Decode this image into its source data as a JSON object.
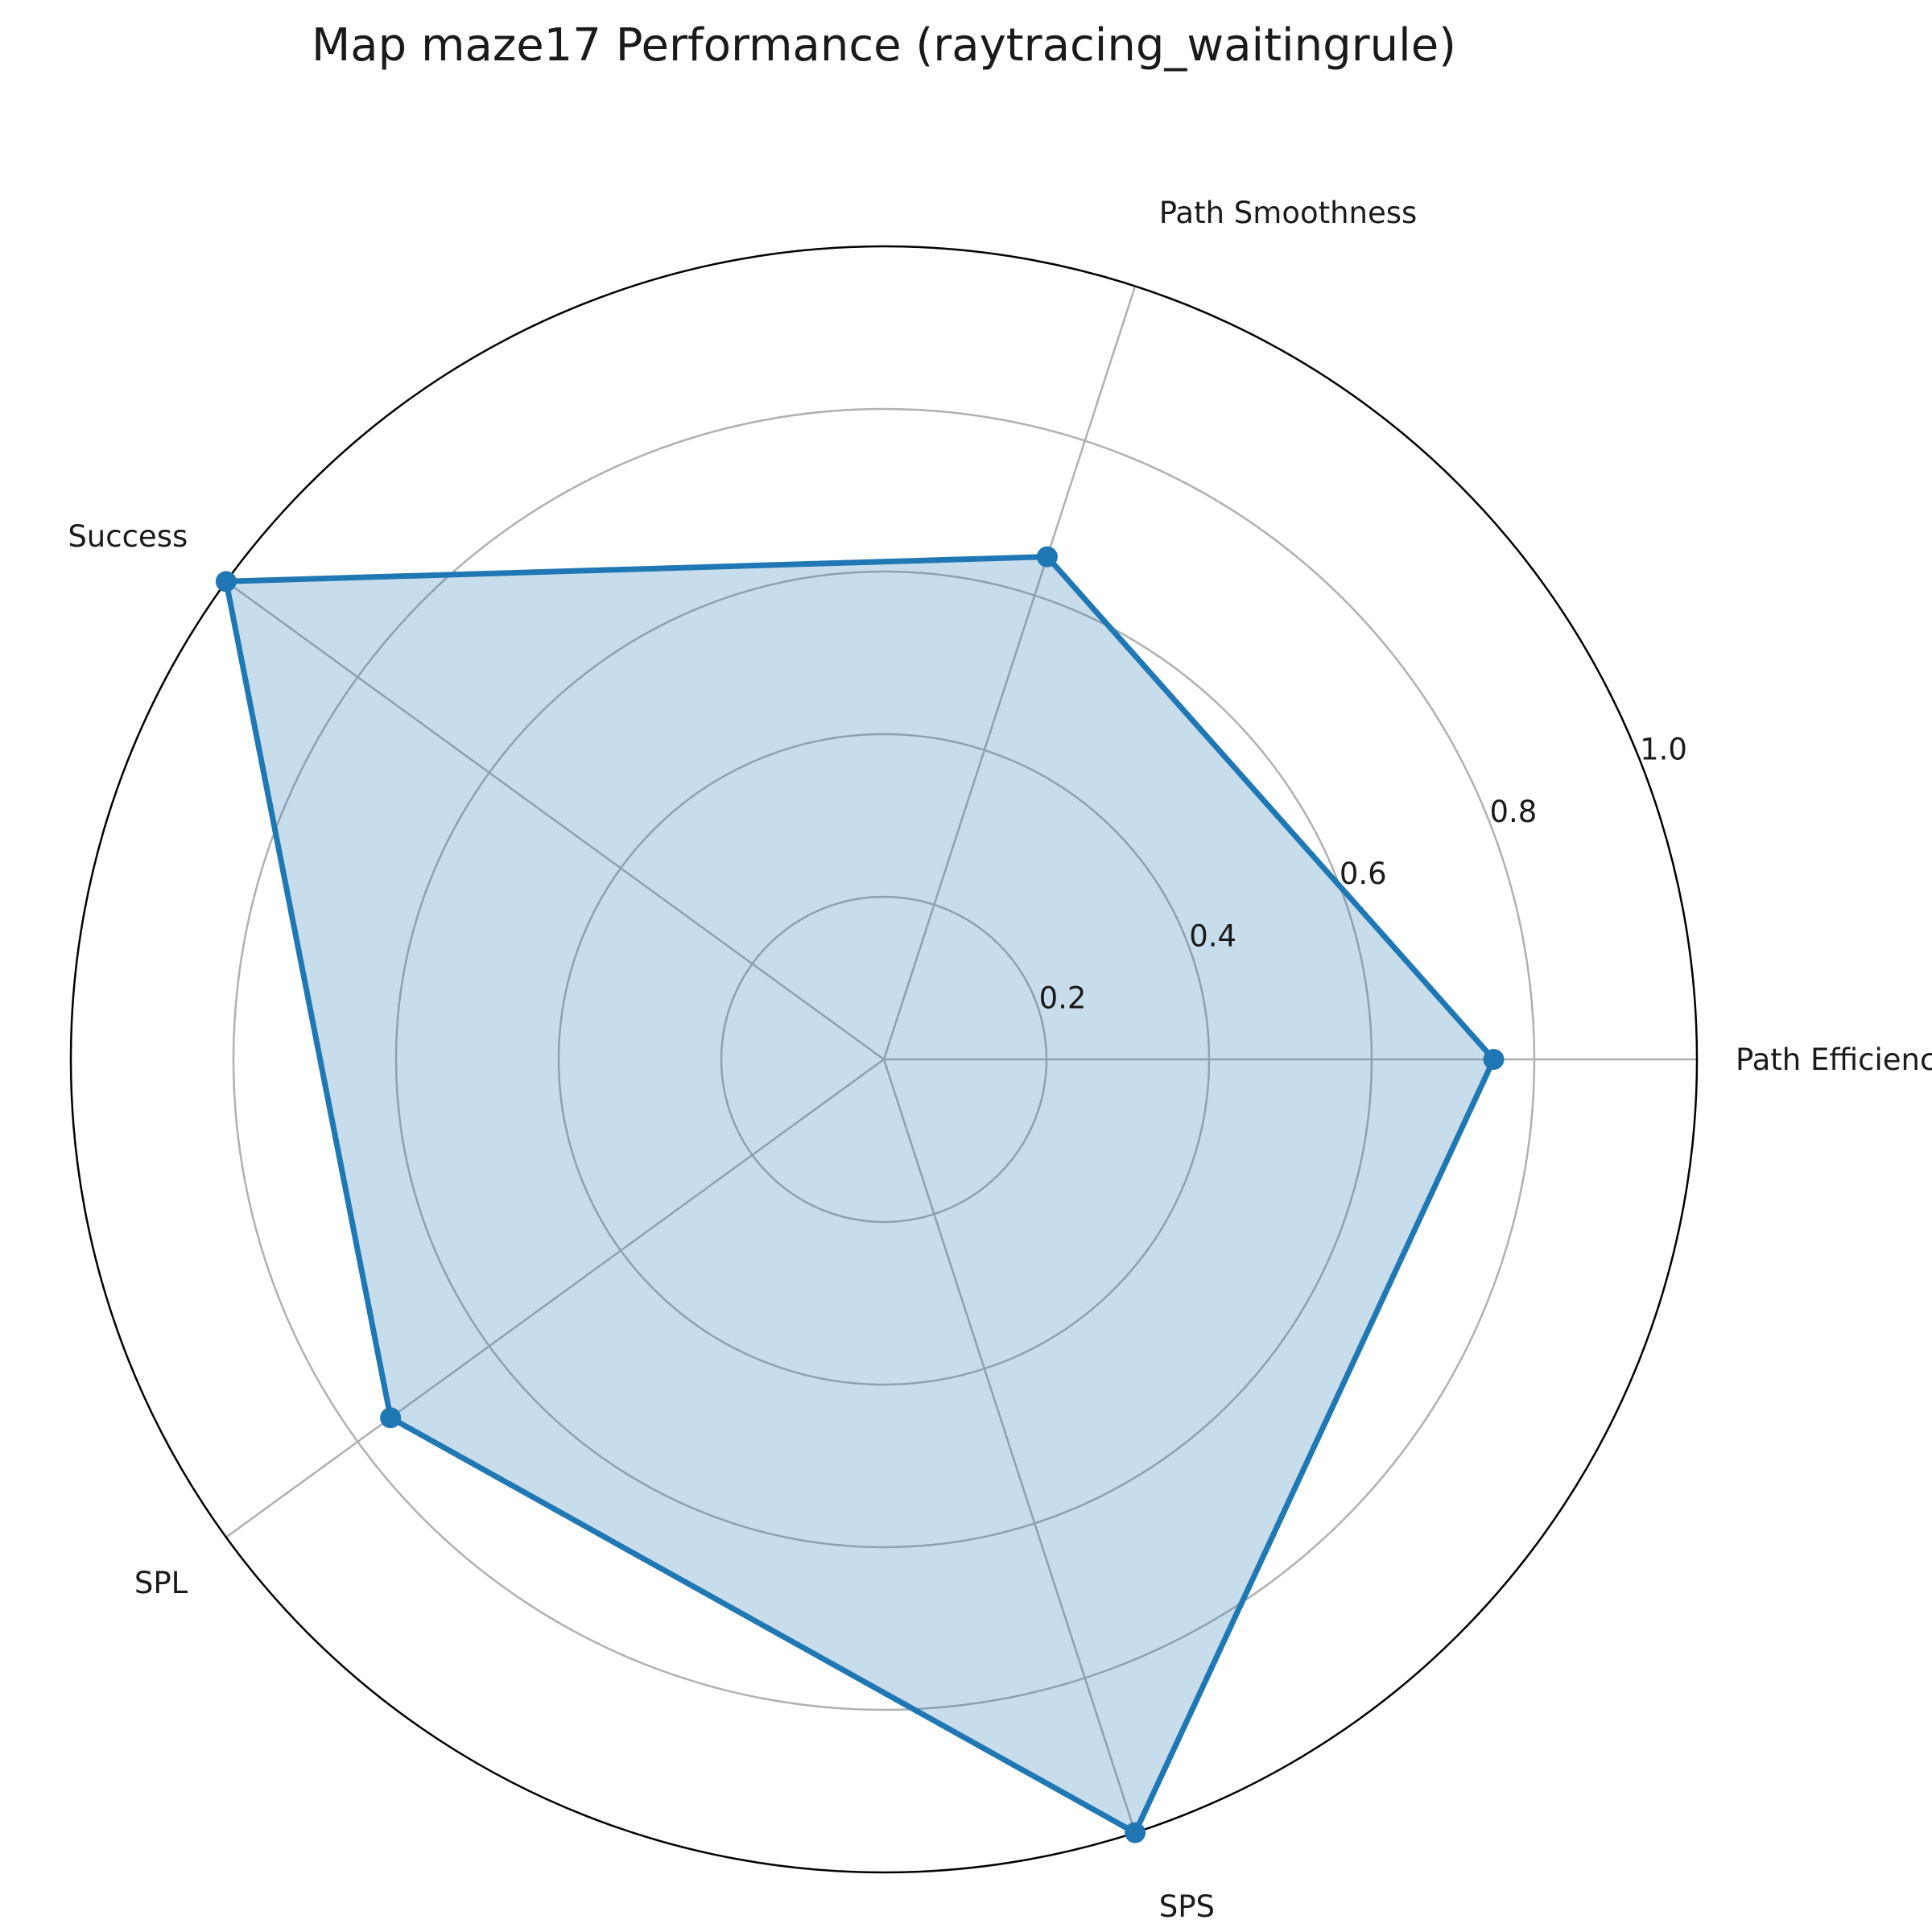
{
  "chart_data": {
    "type": "radar",
    "title": "Map maze17 Performance (raytracing_waitingrule)",
    "axes": [
      "Path Efficiency",
      "Path Smoothness",
      "Success",
      "SPL",
      "SPS"
    ],
    "series": [
      {
        "values": [
          0.75,
          0.65,
          1.0,
          0.75,
          1.0
        ]
      }
    ],
    "r_ticks": [
      0.2,
      0.4,
      0.6,
      0.8,
      1.0
    ],
    "r_tick_labels": [
      "0.2",
      "0.4",
      "0.6",
      "0.8",
      "1.0"
    ],
    "rlim": [
      0,
      1.0
    ],
    "grid": true,
    "colors": {
      "line": "#1f77b4",
      "fill": "#1f77b4",
      "grid": "#b0b0b0",
      "frame": "#000000"
    }
  }
}
